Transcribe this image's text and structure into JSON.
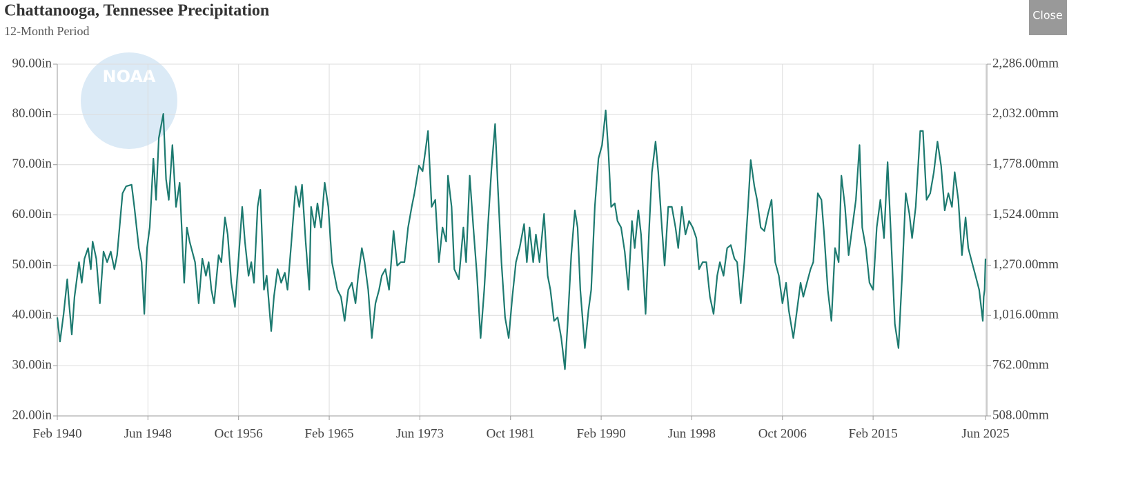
{
  "chart_data": {
    "type": "line",
    "title": "Chattanooga, Tennessee Precipitation",
    "subtitle": "12-Month Period",
    "logo": "NOAA",
    "close_button": "Close",
    "x": [
      "1940-02",
      "1940-05",
      "1940-09",
      "1941-01",
      "1941-03",
      "1941-06",
      "1941-09",
      "1942-02",
      "1942-05",
      "1942-08",
      "1942-12",
      "1943-03",
      "1943-05",
      "1943-09",
      "1944-01",
      "1944-05",
      "1944-09",
      "1945-01",
      "1945-05",
      "1945-08",
      "1946-02",
      "1946-06",
      "1946-12",
      "1947-03",
      "1947-08",
      "1947-11",
      "1948-02",
      "1948-05",
      "1948-08",
      "1948-12",
      "1949-03",
      "1949-06",
      "1949-11",
      "1950-02",
      "1950-05",
      "1950-09",
      "1951-01",
      "1951-05",
      "1951-10",
      "1952-01",
      "1952-04",
      "1952-10",
      "1953-02",
      "1953-06",
      "1953-10",
      "1954-01",
      "1954-04",
      "1954-07",
      "1954-12",
      "1955-03",
      "1955-07",
      "1955-10",
      "1956-02",
      "1956-06",
      "1956-10",
      "1957-02",
      "1957-05",
      "1957-09",
      "1957-12",
      "1958-03",
      "1958-07",
      "1958-10",
      "1959-02",
      "1959-05",
      "1959-10",
      "1960-01",
      "1960-05",
      "1960-09",
      "1961-01",
      "1961-04",
      "1961-08",
      "1962-01",
      "1962-05",
      "1962-08",
      "1962-12",
      "1963-04",
      "1963-06",
      "1963-10",
      "1964-01",
      "1964-05",
      "1964-09",
      "1965-01",
      "1965-05",
      "1965-11",
      "1966-03",
      "1966-07",
      "1966-11",
      "1967-03",
      "1967-07",
      "1967-10",
      "1968-02",
      "1968-05",
      "1968-09",
      "1969-01",
      "1969-05",
      "1969-09",
      "1969-12",
      "1970-04",
      "1970-08",
      "1971-01",
      "1971-05",
      "1971-09",
      "1972-01",
      "1972-05",
      "1972-09",
      "1972-12",
      "1973-05",
      "1973-09",
      "1973-12",
      "1974-03",
      "1974-07",
      "1974-11",
      "1975-03",
      "1975-07",
      "1975-11",
      "1976-01",
      "1976-05",
      "1976-08",
      "1977-01",
      "1977-06",
      "1977-09",
      "1978-01",
      "1978-05",
      "1978-09",
      "1979-01",
      "1979-05",
      "1979-09",
      "1980-01",
      "1980-05",
      "1980-08",
      "1980-12",
      "1981-04",
      "1981-08",
      "1981-12",
      "1982-04",
      "1982-08",
      "1983-01",
      "1983-04",
      "1983-07",
      "1983-11",
      "1984-02",
      "1984-06",
      "1984-11",
      "1985-03",
      "1985-06",
      "1985-10",
      "1986-02",
      "1986-06",
      "1986-10",
      "1987-01",
      "1987-05",
      "1987-09",
      "1987-12",
      "1988-03",
      "1988-08",
      "1988-12",
      "1989-03",
      "1989-07",
      "1989-11",
      "1990-03",
      "1990-07",
      "1990-10",
      "1991-01",
      "1991-05",
      "1991-08",
      "1991-12",
      "1992-04",
      "1992-08",
      "1992-12",
      "1993-03",
      "1993-07",
      "1993-10",
      "1994-03",
      "1994-07",
      "1994-10",
      "1995-02",
      "1995-05",
      "1995-09",
      "1995-12",
      "1996-04",
      "1996-08",
      "1996-12",
      "1997-03",
      "1997-07",
      "1997-11",
      "1998-03",
      "1998-07",
      "1998-11",
      "1999-02",
      "1999-06",
      "1999-10",
      "2000-02",
      "2000-06",
      "2000-10",
      "2001-01",
      "2001-05",
      "2001-09",
      "2002-01",
      "2002-05",
      "2002-08",
      "2002-12",
      "2003-04",
      "2003-08",
      "2003-11",
      "2004-03",
      "2004-06",
      "2004-10",
      "2005-02",
      "2005-06",
      "2005-10",
      "2006-02",
      "2006-06",
      "2006-10",
      "2007-02",
      "2007-05",
      "2007-10",
      "2008-02",
      "2008-06",
      "2008-09",
      "2009-01",
      "2009-05",
      "2009-08",
      "2010-01",
      "2010-05",
      "2010-08",
      "2010-12",
      "2011-04",
      "2011-08",
      "2011-12",
      "2012-03",
      "2012-07",
      "2012-11",
      "2013-03",
      "2013-07",
      "2013-11",
      "2014-02",
      "2014-06",
      "2014-10",
      "2015-02",
      "2015-06",
      "2015-10",
      "2016-02",
      "2016-06",
      "2016-10",
      "2017-02",
      "2017-06",
      "2017-10",
      "2018-02",
      "2018-06",
      "2018-09",
      "2019-01",
      "2019-06",
      "2019-09",
      "2020-01",
      "2020-05",
      "2020-09",
      "2021-01",
      "2021-05",
      "2021-09",
      "2022-01",
      "2022-05",
      "2022-08",
      "2022-12",
      "2023-04",
      "2023-08",
      "2023-11",
      "2024-03",
      "2024-07",
      "2024-11",
      "2025-03",
      "2025-04",
      "2025-05",
      "2025-06"
    ],
    "series": [
      {
        "name": "Precipitation",
        "color": "#1d7a70",
        "values": [
          39.6,
          34.8,
          40.3,
          47.2,
          42.4,
          36.2,
          43.7,
          50.6,
          46.5,
          51.3,
          53.4,
          49.2,
          54.7,
          51.3,
          42.4,
          52.7,
          50.6,
          52.7,
          49.2,
          52.0,
          64.3,
          65.7,
          66.0,
          61.6,
          53.4,
          50.6,
          40.3,
          53.4,
          57.5,
          71.2,
          63.0,
          75.3,
          80.1,
          67.1,
          63.0,
          73.9,
          61.6,
          66.4,
          46.5,
          57.5,
          54.7,
          50.6,
          42.4,
          51.3,
          47.9,
          50.6,
          45.1,
          42.4,
          52.0,
          50.6,
          59.5,
          56.1,
          46.5,
          41.7,
          51.3,
          61.6,
          54.7,
          47.9,
          50.6,
          46.5,
          61.6,
          65.0,
          45.1,
          47.9,
          36.9,
          43.7,
          49.2,
          46.5,
          48.5,
          45.1,
          54.0,
          65.7,
          61.6,
          66.0,
          54.7,
          45.1,
          61.6,
          57.5,
          62.3,
          57.5,
          66.4,
          61.6,
          50.6,
          45.1,
          43.7,
          38.9,
          45.1,
          46.5,
          42.4,
          47.9,
          53.4,
          50.6,
          45.1,
          35.5,
          42.4,
          45.1,
          47.9,
          49.2,
          45.1,
          56.8,
          49.9,
          50.6,
          50.6,
          57.5,
          61.6,
          64.3,
          69.8,
          68.7,
          72.6,
          76.7,
          61.6,
          63.0,
          50.6,
          57.5,
          54.7,
          67.8,
          61.6,
          49.2,
          47.2,
          57.5,
          50.6,
          67.8,
          57.5,
          47.9,
          35.5,
          45.1,
          57.5,
          69.1,
          78.1,
          65.7,
          50.6,
          39.6,
          35.5,
          43.7,
          50.6,
          53.4,
          58.2,
          50.6,
          57.5,
          50.6,
          56.1,
          50.6,
          60.2,
          47.9,
          45.1,
          38.9,
          39.6,
          35.5,
          29.3,
          38.3,
          52.0,
          60.9,
          57.5,
          45.1,
          33.5,
          41.0,
          45.1,
          61.6,
          71.2,
          73.9,
          80.8,
          72.6,
          61.6,
          62.3,
          58.8,
          57.5,
          52.7,
          45.1,
          58.8,
          53.4,
          60.9,
          56.1,
          40.3,
          57.5,
          68.5,
          74.6,
          68.5,
          57.5,
          49.9,
          61.6,
          61.6,
          57.5,
          53.4,
          61.6,
          56.1,
          58.8,
          57.5,
          55.4,
          49.2,
          50.6,
          50.6,
          43.7,
          40.3,
          47.9,
          50.6,
          47.9,
          53.4,
          54.0,
          51.3,
          50.6,
          42.4,
          50.6,
          61.6,
          70.9,
          65.7,
          63.0,
          57.5,
          56.8,
          60.2,
          63.0,
          50.6,
          47.9,
          42.4,
          46.5,
          41.0,
          35.5,
          41.0,
          46.5,
          43.7,
          46.5,
          49.2,
          50.6,
          64.3,
          63.0,
          56.1,
          45.1,
          38.9,
          53.4,
          50.6,
          67.8,
          61.6,
          52.0,
          57.5,
          63.0,
          73.9,
          57.5,
          53.4,
          46.5,
          45.1,
          57.5,
          63.0,
          55.4,
          70.5,
          54.7,
          38.3,
          33.5,
          47.9,
          64.3,
          60.2,
          55.4,
          61.6,
          76.7,
          76.7,
          63.0,
          64.3,
          68.5,
          74.6,
          69.8,
          60.9,
          64.3,
          61.6,
          68.5,
          63.0,
          52.0,
          59.5,
          53.4,
          50.6,
          47.9,
          45.1,
          38.9,
          43.7,
          45.1,
          51.3
        ]
      }
    ],
    "xlim": [
      "1940-02",
      "2025-06"
    ],
    "xticks": [
      {
        "value": "1940-02",
        "label": "Feb 1940"
      },
      {
        "value": "1948-06",
        "label": "Jun 1948"
      },
      {
        "value": "1956-10",
        "label": "Oct 1956"
      },
      {
        "value": "1965-02",
        "label": "Feb 1965"
      },
      {
        "value": "1973-06",
        "label": "Jun 1973"
      },
      {
        "value": "1981-10",
        "label": "Oct 1981"
      },
      {
        "value": "1990-02",
        "label": "Feb 1990"
      },
      {
        "value": "1998-06",
        "label": "Jun 1998"
      },
      {
        "value": "2006-10",
        "label": "Oct 2006"
      },
      {
        "value": "2015-02",
        "label": "Feb 2015"
      },
      {
        "value": "2025-06",
        "label": "Jun 2025"
      }
    ],
    "ylim": [
      20,
      90
    ],
    "yticks": [
      {
        "value": 20,
        "label": "20.00in"
      },
      {
        "value": 30,
        "label": "30.00in"
      },
      {
        "value": 40,
        "label": "40.00in"
      },
      {
        "value": 50,
        "label": "50.00in"
      },
      {
        "value": 60,
        "label": "60.00in"
      },
      {
        "value": 70,
        "label": "70.00in"
      },
      {
        "value": 80,
        "label": "80.00in"
      },
      {
        "value": 90,
        "label": "90.00in"
      }
    ],
    "y2lim": [
      508,
      2286
    ],
    "y2ticks": [
      {
        "value": 508,
        "label": "508.00mm"
      },
      {
        "value": 762,
        "label": "762.00mm"
      },
      {
        "value": 1016,
        "label": "1,016.00mm"
      },
      {
        "value": 1270,
        "label": "1,270.00mm"
      },
      {
        "value": 1524,
        "label": "1,524.00mm"
      },
      {
        "value": 1778,
        "label": "1,778.00mm"
      },
      {
        "value": 2032,
        "label": "2,032.00mm"
      },
      {
        "value": 2286,
        "label": "2,286.00mm"
      }
    ],
    "grid": true
  }
}
